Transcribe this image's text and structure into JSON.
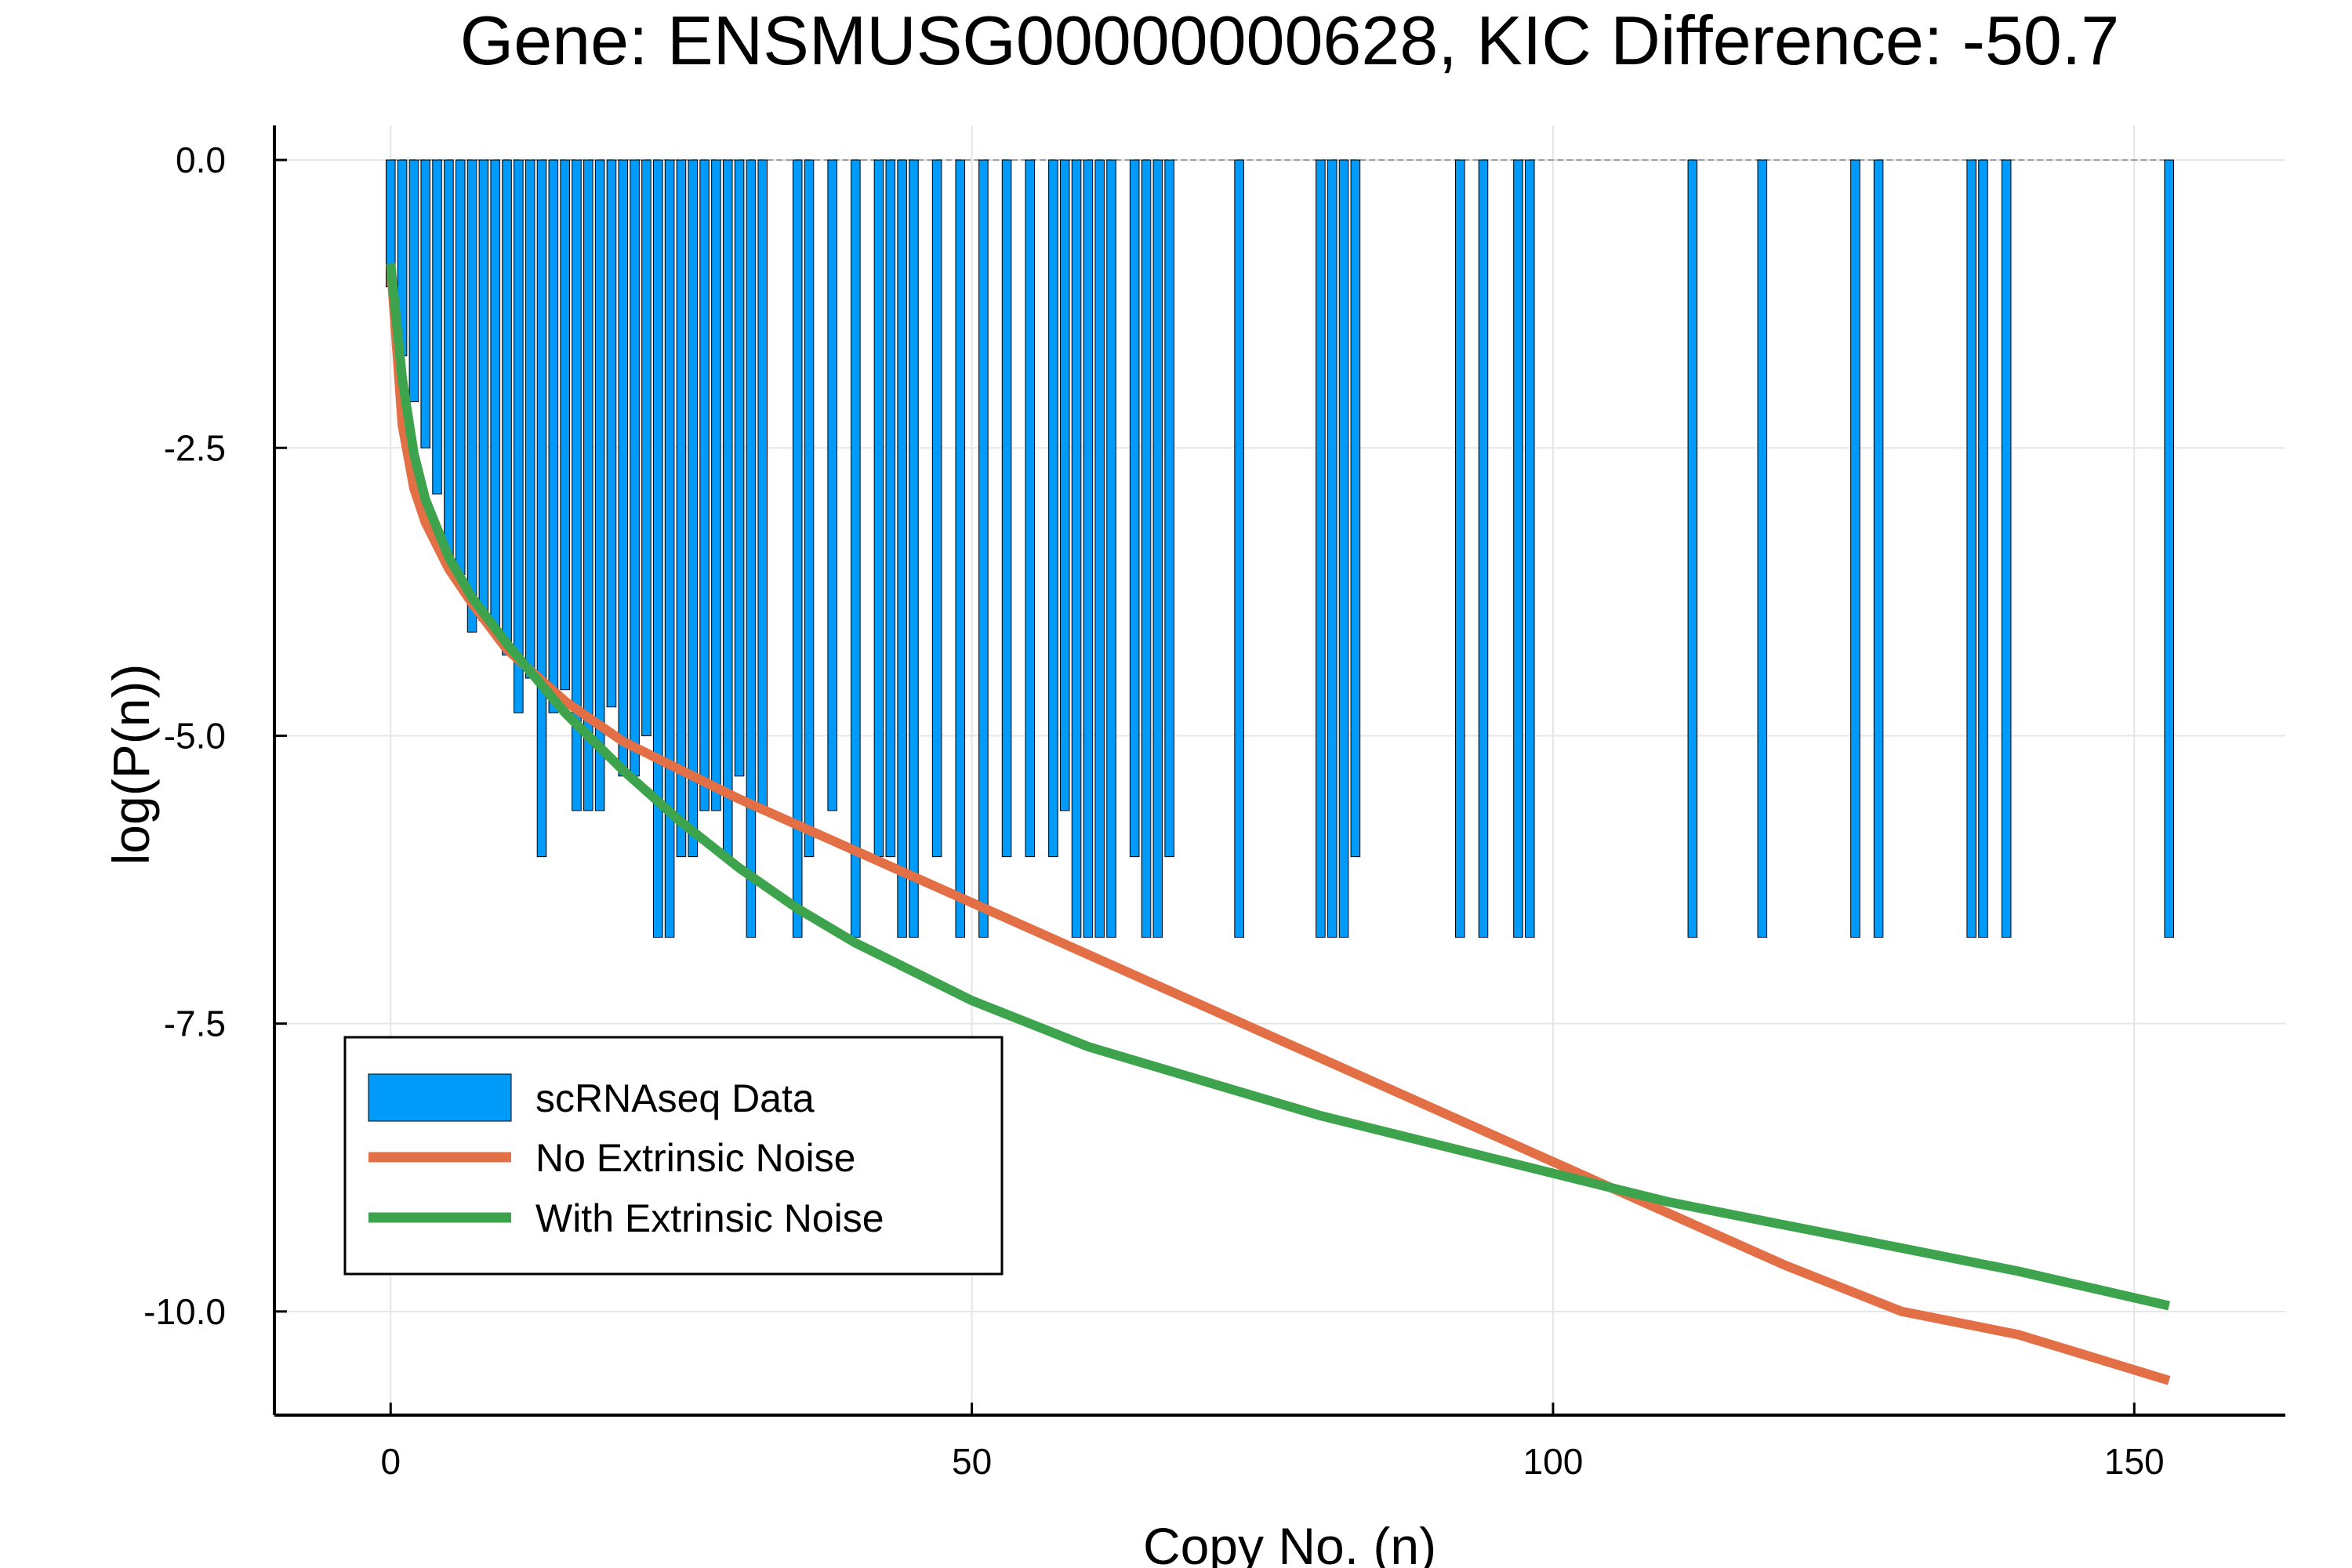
{
  "chart_data": {
    "type": "bar",
    "title": "Gene: ENSMUSG00000000628, KIC Difference: -50.7",
    "xlabel": "Copy No. (n)",
    "ylabel": "log(P(n))",
    "xlim": [
      -10,
      163
    ],
    "ylim": [
      -10.9,
      0.3
    ],
    "xticks": [
      0,
      50,
      100,
      150
    ],
    "yticks": [
      0.0,
      -2.5,
      -5.0,
      -7.5,
      -10.0
    ],
    "x_tick_labels": [
      "0",
      "50",
      "100",
      "150"
    ],
    "y_tick_labels": [
      "0.0",
      "-2.5",
      "-5.0",
      "-7.5",
      "-10.0"
    ],
    "grid": true,
    "legend_position": "bottom-left",
    "series": [
      {
        "name": "scRNAseq Data",
        "kind": "bar",
        "color": "#009af9",
        "bars": [
          {
            "x": 0,
            "y": -1.1
          },
          {
            "x": 1,
            "y": -1.7
          },
          {
            "x": 2,
            "y": -2.1
          },
          {
            "x": 3,
            "y": -2.5
          },
          {
            "x": 4,
            "y": -2.9
          },
          {
            "x": 5,
            "y": -3.5
          },
          {
            "x": 6,
            "y": -3.6
          },
          {
            "x": 7,
            "y": -4.1
          },
          {
            "x": 8,
            "y": -4.0
          },
          {
            "x": 9,
            "y": -4.1
          },
          {
            "x": 10,
            "y": -4.3
          },
          {
            "x": 11,
            "y": -4.8
          },
          {
            "x": 12,
            "y": -4.5
          },
          {
            "x": 13,
            "y": -6.05
          },
          {
            "x": 14,
            "y": -4.8
          },
          {
            "x": 15,
            "y": -4.6
          },
          {
            "x": 16,
            "y": -5.65
          },
          {
            "x": 17,
            "y": -5.65
          },
          {
            "x": 18,
            "y": -5.65
          },
          {
            "x": 19,
            "y": -4.75
          },
          {
            "x": 20,
            "y": -5.35
          },
          {
            "x": 21,
            "y": -5.35
          },
          {
            "x": 22,
            "y": -5.0
          },
          {
            "x": 23,
            "y": -6.75
          },
          {
            "x": 24,
            "y": -6.75
          },
          {
            "x": 25,
            "y": -6.05
          },
          {
            "x": 26,
            "y": -6.05
          },
          {
            "x": 27,
            "y": -5.65
          },
          {
            "x": 28,
            "y": -5.65
          },
          {
            "x": 29,
            "y": -6.05
          },
          {
            "x": 30,
            "y": -5.35
          },
          {
            "x": 31,
            "y": -6.75
          },
          {
            "x": 32,
            "y": -5.65
          },
          {
            "x": 35,
            "y": -6.75
          },
          {
            "x": 36,
            "y": -6.05
          },
          {
            "x": 38,
            "y": -5.65
          },
          {
            "x": 40,
            "y": -6.75
          },
          {
            "x": 42,
            "y": -6.05
          },
          {
            "x": 43,
            "y": -6.05
          },
          {
            "x": 44,
            "y": -6.75
          },
          {
            "x": 45,
            "y": -6.75
          },
          {
            "x": 47,
            "y": -6.05
          },
          {
            "x": 49,
            "y": -6.75
          },
          {
            "x": 51,
            "y": -6.75
          },
          {
            "x": 53,
            "y": -6.05
          },
          {
            "x": 55,
            "y": -6.05
          },
          {
            "x": 57,
            "y": -6.05
          },
          {
            "x": 58,
            "y": -5.65
          },
          {
            "x": 59,
            "y": -6.75
          },
          {
            "x": 60,
            "y": -6.75
          },
          {
            "x": 61,
            "y": -6.75
          },
          {
            "x": 62,
            "y": -6.75
          },
          {
            "x": 64,
            "y": -6.05
          },
          {
            "x": 65,
            "y": -6.75
          },
          {
            "x": 66,
            "y": -6.75
          },
          {
            "x": 67,
            "y": -6.05
          },
          {
            "x": 73,
            "y": -6.75
          },
          {
            "x": 80,
            "y": -6.75
          },
          {
            "x": 81,
            "y": -6.75
          },
          {
            "x": 82,
            "y": -6.75
          },
          {
            "x": 83,
            "y": -6.05
          },
          {
            "x": 92,
            "y": -6.75
          },
          {
            "x": 94,
            "y": -6.75
          },
          {
            "x": 97,
            "y": -6.75
          },
          {
            "x": 98,
            "y": -6.75
          },
          {
            "x": 112,
            "y": -6.75
          },
          {
            "x": 118,
            "y": -6.75
          },
          {
            "x": 126,
            "y": -6.75
          },
          {
            "x": 128,
            "y": -6.75
          },
          {
            "x": 136,
            "y": -6.75
          },
          {
            "x": 137,
            "y": -6.75
          },
          {
            "x": 139,
            "y": -6.75
          },
          {
            "x": 153,
            "y": -6.75
          }
        ]
      },
      {
        "name": "No Extrinsic Noise",
        "kind": "line",
        "color": "#e26f46",
        "x": [
          0,
          1,
          2,
          3,
          5,
          7,
          10,
          15,
          20,
          30,
          40,
          50,
          60,
          70,
          80,
          90,
          100,
          110,
          120,
          130,
          140,
          153
        ],
        "y": [
          -0.9,
          -2.3,
          -2.85,
          -3.15,
          -3.55,
          -3.85,
          -4.25,
          -4.7,
          -5.05,
          -5.55,
          -6.0,
          -6.45,
          -6.9,
          -7.35,
          -7.8,
          -8.25,
          -8.7,
          -9.15,
          -9.6,
          -10.0,
          -10.2,
          -10.6
        ]
      },
      {
        "name": "With Extrinsic Noise",
        "kind": "line",
        "color": "#3da44d",
        "x": [
          0,
          1,
          2,
          3,
          5,
          7,
          10,
          15,
          20,
          25,
          30,
          35,
          40,
          45,
          50,
          55,
          60,
          70,
          80,
          90,
          100,
          110,
          120,
          130,
          140,
          153
        ],
        "y": [
          -0.9,
          -1.9,
          -2.55,
          -2.95,
          -3.45,
          -3.8,
          -4.2,
          -4.8,
          -5.3,
          -5.75,
          -6.15,
          -6.5,
          -6.8,
          -7.05,
          -7.3,
          -7.5,
          -7.7,
          -8.0,
          -8.3,
          -8.55,
          -8.8,
          -9.05,
          -9.25,
          -9.45,
          -9.65,
          -9.95
        ]
      }
    ]
  }
}
